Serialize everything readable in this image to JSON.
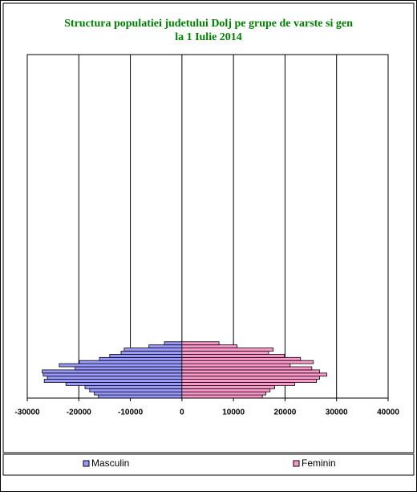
{
  "chart_data": {
    "type": "pyramid",
    "title": "Structura populatiei judetului Dolj  pe grupe de varste si gen",
    "subtitle": "la 1 Iulie 2014",
    "series": [
      {
        "name": "Masculin",
        "color": "#9999ff",
        "values": [
          -16200,
          -17000,
          -17900,
          -18800,
          -22500,
          -26700,
          -26100,
          -26900,
          -27100,
          -20700,
          -23800,
          -19900,
          -16000,
          -14000,
          -11800,
          -11200,
          -6400,
          -3400
        ]
      },
      {
        "name": "Feminin",
        "color": "#ff99cc",
        "values": [
          15600,
          16300,
          17100,
          18000,
          21900,
          26100,
          26700,
          28100,
          26700,
          25200,
          21000,
          25500,
          23000,
          19900,
          16800,
          17700,
          10700,
          7200
        ]
      }
    ],
    "xlim": [
      -30000,
      40000
    ],
    "xticks": [
      -30000,
      -20000,
      -10000,
      0,
      10000,
      20000,
      30000,
      40000
    ],
    "grid": true
  }
}
